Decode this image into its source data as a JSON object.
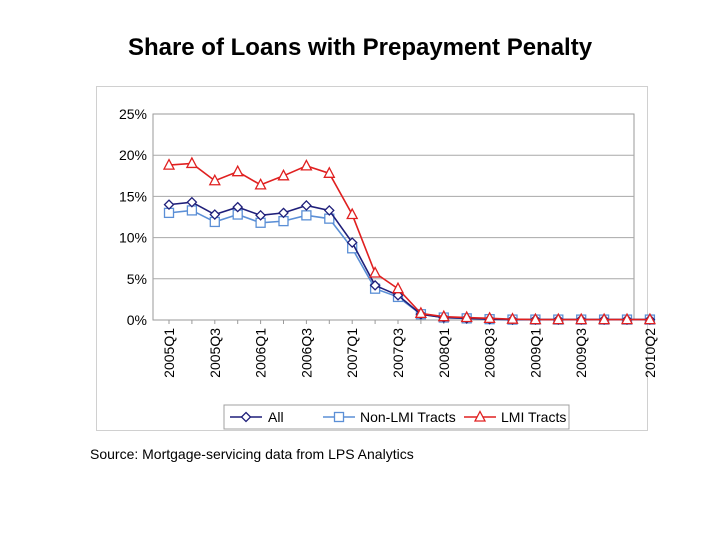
{
  "slide": {
    "title": "Share of Loans with Prepayment Penalty",
    "source": "Source: Mortgage-servicing data from LPS Analytics"
  },
  "chart_data": {
    "type": "line",
    "title": "",
    "xlabel": "",
    "ylabel": "",
    "ylim": [
      0,
      25
    ],
    "y_ticks": [
      "0%",
      "5%",
      "10%",
      "15%",
      "20%",
      "25%"
    ],
    "y_tick_values": [
      0,
      5,
      10,
      15,
      20,
      25
    ],
    "x": [
      "2005Q1",
      "2005Q2",
      "2005Q3",
      "2005Q4",
      "2006Q1",
      "2006Q2",
      "2006Q3",
      "2006Q4",
      "2007Q1",
      "2007Q2",
      "2007Q3",
      "2007Q4",
      "2008Q1",
      "2008Q2",
      "2008Q3",
      "2008Q4",
      "2009Q1",
      "2009Q2",
      "2009Q3",
      "2009Q4",
      "2010Q1",
      "2010Q2"
    ],
    "x_tick_labels": [
      "2005Q1",
      "",
      "2005Q3",
      "",
      "2006Q1",
      "",
      "2006Q3",
      "",
      "2007Q1",
      "",
      "2007Q3",
      "",
      "2008Q1",
      "",
      "2008Q3",
      "",
      "2009Q1",
      "",
      "2009Q3",
      "",
      "",
      "2010Q2"
    ],
    "grid": true,
    "legend_position": "bottom",
    "series": [
      {
        "name": "All",
        "color": "#1f1f7a",
        "marker": "diamond",
        "values": [
          14.0,
          14.3,
          12.8,
          13.7,
          12.7,
          13.0,
          13.9,
          13.3,
          9.4,
          4.2,
          3.0,
          0.7,
          0.3,
          0.2,
          0.1,
          0.05,
          0.05,
          0.05,
          0.05,
          0.05,
          0.05,
          0.05
        ]
      },
      {
        "name": "Non-LMI Tracts",
        "color": "#5b8fd6",
        "marker": "square",
        "values": [
          13.0,
          13.3,
          11.9,
          12.8,
          11.8,
          12.0,
          12.7,
          12.3,
          8.7,
          3.8,
          2.8,
          0.7,
          0.3,
          0.2,
          0.1,
          0.05,
          0.05,
          0.05,
          0.05,
          0.05,
          0.05,
          0.05
        ]
      },
      {
        "name": "LMI Tracts",
        "color": "#e02020",
        "marker": "triangle",
        "values": [
          18.8,
          19.0,
          16.9,
          18.0,
          16.4,
          17.5,
          18.7,
          17.8,
          12.8,
          5.7,
          3.8,
          0.8,
          0.4,
          0.3,
          0.2,
          0.1,
          0.05,
          0.05,
          0.05,
          0.05,
          0.05,
          0.05
        ]
      }
    ]
  }
}
